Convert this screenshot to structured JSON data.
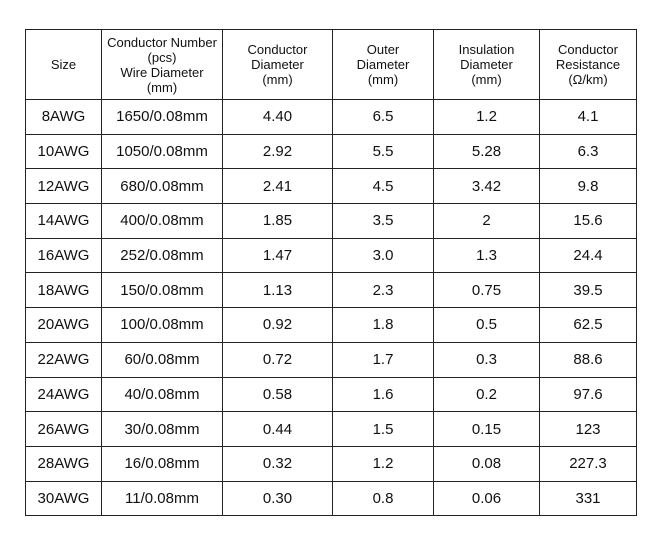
{
  "table": {
    "headers": [
      [
        "Size"
      ],
      [
        "Conductor Number",
        "(pcs)",
        "Wire Diameter",
        "(mm)"
      ],
      [
        "Conductor",
        "Diameter",
        "(mm)"
      ],
      [
        "Outer",
        "Diameter",
        "(mm)"
      ],
      [
        "Insulation",
        "Diameter",
        "(mm)"
      ],
      [
        "Conductor",
        "Resistance",
        "(Ω/km)"
      ]
    ],
    "rows": [
      [
        "8AWG",
        "1650/0.08mm",
        "4.40",
        "6.5",
        "1.2",
        "4.1"
      ],
      [
        "10AWG",
        "1050/0.08mm",
        "2.92",
        "5.5",
        "5.28",
        "6.3"
      ],
      [
        "12AWG",
        "680/0.08mm",
        "2.41",
        "4.5",
        "3.42",
        "9.8"
      ],
      [
        "14AWG",
        "400/0.08mm",
        "1.85",
        "3.5",
        "2",
        "15.6"
      ],
      [
        "16AWG",
        "252/0.08mm",
        "1.47",
        "3.0",
        "1.3",
        "24.4"
      ],
      [
        "18AWG",
        "150/0.08mm",
        "1.13",
        "2.3",
        "0.75",
        "39.5"
      ],
      [
        "20AWG",
        "100/0.08mm",
        "0.92",
        "1.8",
        "0.5",
        "62.5"
      ],
      [
        "22AWG",
        "60/0.08mm",
        "0.72",
        "1.7",
        "0.3",
        "88.6"
      ],
      [
        "24AWG",
        "40/0.08mm",
        "0.58",
        "1.6",
        "0.2",
        "97.6"
      ],
      [
        "26AWG",
        "30/0.08mm",
        "0.44",
        "1.5",
        "0.15",
        "123"
      ],
      [
        "28AWG",
        "16/0.08mm",
        "0.32",
        "1.2",
        "0.08",
        "227.3"
      ],
      [
        "30AWG",
        "11/0.08mm",
        "0.30",
        "0.8",
        "0.06",
        "331"
      ]
    ]
  }
}
